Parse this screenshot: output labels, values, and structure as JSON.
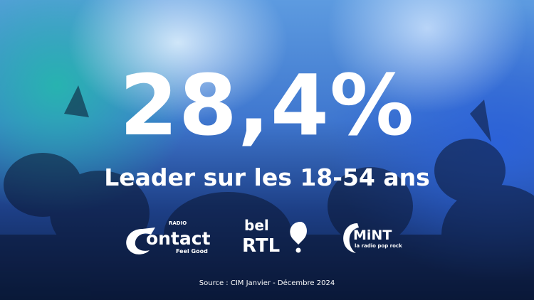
{
  "headline": "28,4%",
  "subtitle": "Leader sur les 18-54 ans",
  "logos": [
    {
      "top": "RADIO",
      "name": "ontact",
      "tagline": "Feel Good"
    },
    {
      "top": "bel",
      "name": "RTL"
    },
    {
      "name": "MiNT",
      "tagline": "la radio pop rock"
    }
  ],
  "source": "Source : CIM Janvier - Décembre 2024"
}
